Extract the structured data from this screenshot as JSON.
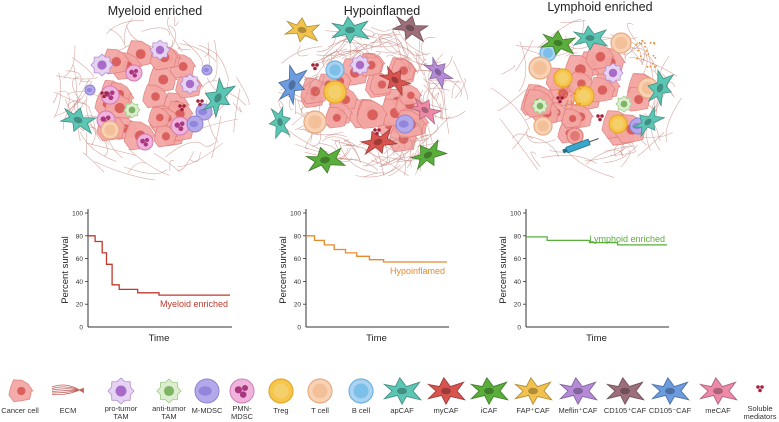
{
  "panels": [
    {
      "title": "Myeloid enriched",
      "curve_label": "Myeloid enriched",
      "color": "#c0392b",
      "cells_theme": "myeloid"
    },
    {
      "title": "Hypoinflamed",
      "curve_label": "Hypoinflamed",
      "color": "#e8892b",
      "cells_theme": "hypo"
    },
    {
      "title": "Lymphoid enriched",
      "curve_label": "Lymphoid enriched",
      "color": "#5aae3c",
      "cells_theme": "lymphoid"
    }
  ],
  "chart_data": [
    {
      "type": "line",
      "title": "",
      "xlabel": "Time",
      "ylabel": "Percent survival",
      "ylim": [
        0,
        100
      ],
      "yticks": [
        0,
        20,
        40,
        60,
        80,
        100
      ],
      "series": [
        {
          "name": "Myeloid enriched",
          "x": [
            0,
            0.05,
            0.05,
            0.1,
            0.1,
            0.13,
            0.13,
            0.17,
            0.17,
            0.22,
            0.22,
            0.35,
            0.35,
            0.5,
            0.5,
            1.0
          ],
          "values": [
            80,
            80,
            75,
            75,
            65,
            65,
            55,
            55,
            37,
            37,
            33,
            33,
            30,
            30,
            28,
            28
          ]
        }
      ]
    },
    {
      "type": "line",
      "title": "",
      "xlabel": "Time",
      "ylabel": "Percent survival",
      "ylim": [
        0,
        100
      ],
      "yticks": [
        0,
        20,
        40,
        60,
        80,
        100
      ],
      "series": [
        {
          "name": "Hypoinflamed",
          "x": [
            0,
            0.06,
            0.06,
            0.13,
            0.13,
            0.2,
            0.2,
            0.28,
            0.28,
            0.36,
            0.36,
            0.45,
            0.45,
            0.55,
            0.55,
            1.0
          ],
          "values": [
            80,
            80,
            76,
            76,
            72,
            72,
            68,
            68,
            65,
            65,
            62,
            62,
            59,
            59,
            57,
            57
          ]
        }
      ]
    },
    {
      "type": "line",
      "title": "",
      "xlabel": "Time",
      "ylabel": "Percent survival",
      "ylim": [
        0,
        100
      ],
      "yticks": [
        0,
        20,
        40,
        60,
        80,
        100
      ],
      "series": [
        {
          "name": "Lymphoid enriched",
          "x": [
            0,
            0.15,
            0.15,
            0.45,
            0.45,
            0.65,
            0.65,
            1.0
          ],
          "values": [
            79,
            79,
            76,
            76,
            74,
            74,
            72,
            72
          ]
        }
      ]
    }
  ],
  "legend": [
    {
      "label": "Cancer cell",
      "kind": "cancer"
    },
    {
      "label": "ECM",
      "kind": "ecm"
    },
    {
      "label": "pro-tumor TAM",
      "kind": "protam"
    },
    {
      "label": "anti-tumor TAM",
      "kind": "antitam"
    },
    {
      "label": "M-MDSC",
      "kind": "mmdsc"
    },
    {
      "label": "PMN-MDSC",
      "kind": "pmn"
    },
    {
      "label": "Treg",
      "kind": "treg"
    },
    {
      "label": "T cell",
      "kind": "tcell"
    },
    {
      "label": "B cell",
      "kind": "bcell"
    },
    {
      "label": "apCAF",
      "kind": "caf",
      "color": "#5cc6b5"
    },
    {
      "label": "myCAF",
      "kind": "caf",
      "color": "#d9534f"
    },
    {
      "label": "iCAF",
      "kind": "caf",
      "color": "#5aae3c"
    },
    {
      "label": "FAP⁺CAF",
      "kind": "caf",
      "color": "#f2c24e"
    },
    {
      "label": "Meflin⁺CAF",
      "kind": "caf",
      "color": "#b58ad6"
    },
    {
      "label": "CD105⁺CAF",
      "kind": "caf",
      "color": "#9c6f7a"
    },
    {
      "label": "CD105⁻CAF",
      "kind": "caf",
      "color": "#6c9be0"
    },
    {
      "label": "meCAF",
      "kind": "caf",
      "color": "#ee8aa8"
    },
    {
      "label": "Soluble mediators",
      "kind": "soluble"
    }
  ]
}
